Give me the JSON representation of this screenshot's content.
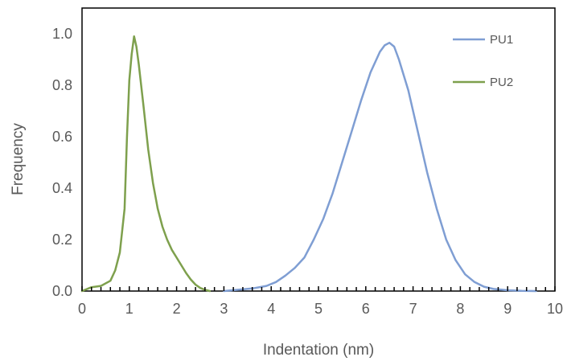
{
  "chart_data": {
    "type": "line",
    "title": "",
    "xlabel": "Indentation (nm)",
    "ylabel": "Frequency",
    "xlim": [
      0,
      10
    ],
    "ylim": [
      0,
      1.1
    ],
    "x_ticks": [
      "0",
      "1",
      "2",
      "3",
      "4",
      "5",
      "6",
      "7",
      "8",
      "9",
      "10"
    ],
    "y_ticks": [
      "0.0",
      "0.2",
      "0.4",
      "0.6",
      "0.8",
      "1.0"
    ],
    "grid": false,
    "legend_position": "top-right",
    "series": [
      {
        "name": "PU1",
        "color": "#7f9ed3",
        "x": [
          3.0,
          3.3,
          3.6,
          3.9,
          4.1,
          4.3,
          4.5,
          4.7,
          4.9,
          5.1,
          5.3,
          5.5,
          5.7,
          5.9,
          6.1,
          6.3,
          6.4,
          6.5,
          6.6,
          6.7,
          6.9,
          7.1,
          7.3,
          7.5,
          7.7,
          7.9,
          8.1,
          8.3,
          8.5,
          8.7,
          9.0,
          9.3,
          9.6
        ],
        "y": [
          0.0,
          0.005,
          0.01,
          0.02,
          0.035,
          0.06,
          0.09,
          0.13,
          0.2,
          0.28,
          0.38,
          0.5,
          0.62,
          0.74,
          0.85,
          0.93,
          0.955,
          0.965,
          0.95,
          0.9,
          0.78,
          0.62,
          0.46,
          0.32,
          0.2,
          0.12,
          0.065,
          0.035,
          0.017,
          0.008,
          0.003,
          0.001,
          0.0
        ]
      },
      {
        "name": "PU2",
        "color": "#7ea04d",
        "x": [
          0.0,
          0.2,
          0.4,
          0.6,
          0.7,
          0.8,
          0.9,
          0.95,
          1.0,
          1.05,
          1.1,
          1.15,
          1.2,
          1.3,
          1.4,
          1.5,
          1.6,
          1.7,
          1.8,
          1.9,
          2.0,
          2.1,
          2.2,
          2.3,
          2.4,
          2.5,
          2.6,
          2.7
        ],
        "y": [
          0.0,
          0.015,
          0.02,
          0.04,
          0.08,
          0.15,
          0.32,
          0.6,
          0.82,
          0.92,
          0.99,
          0.95,
          0.88,
          0.72,
          0.55,
          0.42,
          0.32,
          0.25,
          0.2,
          0.16,
          0.13,
          0.1,
          0.07,
          0.045,
          0.025,
          0.012,
          0.005,
          0.0
        ]
      }
    ]
  }
}
